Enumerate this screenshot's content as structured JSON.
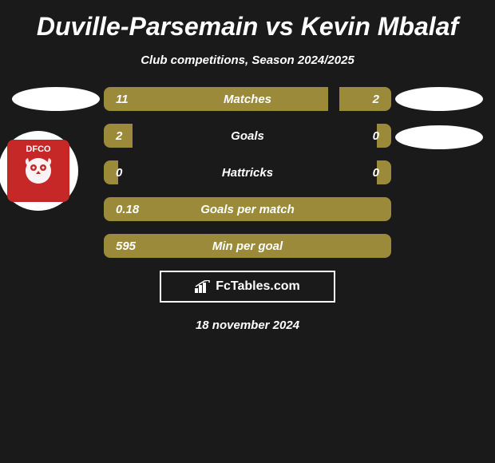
{
  "title": "Duville-Parsemain vs Kevin Mbalaf",
  "subtitle": "Club competitions, Season 2024/2025",
  "date": "18 november 2024",
  "fctables": "FcTables.com",
  "badge": {
    "text_top": "DFCO",
    "bg_color": "#c62828"
  },
  "colors": {
    "bar_fill": "#9a8a3a",
    "background": "#1a1a1a",
    "ellipse": "#ffffff",
    "text": "#ffffff"
  },
  "stats": [
    {
      "label": "Matches",
      "left_value": "11",
      "right_value": "2",
      "left_width_pct": 78,
      "right_width_pct": 18,
      "show_right_value": true
    },
    {
      "label": "Goals",
      "left_value": "2",
      "right_value": "0",
      "left_width_pct": 10,
      "right_width_pct": 5,
      "show_right_value": true
    },
    {
      "label": "Hattricks",
      "left_value": "0",
      "right_value": "0",
      "left_width_pct": 5,
      "right_width_pct": 5,
      "show_right_value": true
    },
    {
      "label": "Goals per match",
      "left_value": "0.18",
      "right_value": "",
      "left_width_pct": 100,
      "right_width_pct": 0,
      "show_right_value": false
    },
    {
      "label": "Min per goal",
      "left_value": "595",
      "right_value": "",
      "left_width_pct": 100,
      "right_width_pct": 0,
      "show_right_value": false
    }
  ]
}
